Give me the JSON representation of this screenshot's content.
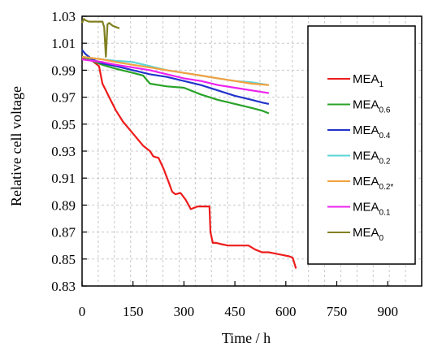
{
  "chart_data": {
    "type": "line",
    "title": "",
    "xlabel": "Time / h",
    "ylabel": "Relative cell voltage",
    "xlim": [
      0,
      1000
    ],
    "ylim": [
      0.83,
      1.03
    ],
    "xticks": [
      "0",
      "150",
      "300",
      "450",
      "600",
      "750",
      "900"
    ],
    "yticks": [
      "0.83",
      "0.85",
      "0.87",
      "0.89",
      "0.91",
      "0.93",
      "0.95",
      "0.97",
      "0.99",
      "1.01",
      "1.03"
    ],
    "grid": true,
    "legend_position": "right",
    "series": [
      {
        "name": "MEA",
        "sub": "1",
        "color": "#ee1c1c",
        "x": [
          0,
          10,
          30,
          50,
          60,
          70,
          80,
          90,
          100,
          120,
          140,
          160,
          180,
          200,
          210,
          225,
          240,
          255,
          265,
          275,
          290,
          305,
          320,
          340,
          360,
          375,
          378,
          385,
          395,
          410,
          430,
          450,
          470,
          490,
          510,
          530,
          550,
          570,
          590,
          610,
          620,
          630
        ],
        "y": [
          0.999,
          0.998,
          0.997,
          0.993,
          0.98,
          0.975,
          0.97,
          0.965,
          0.96,
          0.952,
          0.946,
          0.94,
          0.934,
          0.93,
          0.926,
          0.925,
          0.917,
          0.907,
          0.9,
          0.898,
          0.899,
          0.894,
          0.887,
          0.889,
          0.889,
          0.889,
          0.87,
          0.862,
          0.862,
          0.861,
          0.86,
          0.86,
          0.86,
          0.86,
          0.857,
          0.855,
          0.855,
          0.854,
          0.853,
          0.852,
          0.851,
          0.843
        ]
      },
      {
        "name": "MEA",
        "sub": "0.6",
        "color": "#29a329",
        "x": [
          0,
          20,
          60,
          100,
          150,
          180,
          200,
          250,
          300,
          350,
          400,
          450,
          500,
          530,
          550
        ],
        "y": [
          1.0,
          0.998,
          0.994,
          0.991,
          0.988,
          0.986,
          0.98,
          0.978,
          0.977,
          0.972,
          0.968,
          0.965,
          0.962,
          0.96,
          0.958
        ]
      },
      {
        "name": "MEA",
        "sub": "0.4",
        "color": "#2233cc",
        "x": [
          0,
          10,
          30,
          60,
          100,
          150,
          200,
          250,
          300,
          350,
          400,
          450,
          500,
          530,
          550
        ],
        "y": [
          1.005,
          1.002,
          0.998,
          0.995,
          0.993,
          0.99,
          0.987,
          0.985,
          0.982,
          0.979,
          0.975,
          0.971,
          0.968,
          0.966,
          0.965
        ]
      },
      {
        "name": "MEA",
        "sub": "0.2",
        "color": "#5cd6d6",
        "x": [
          0,
          30,
          60,
          100,
          150,
          200,
          250,
          300,
          350,
          400,
          450,
          500,
          550
        ],
        "y": [
          1.0,
          0.999,
          0.998,
          0.997,
          0.996,
          0.993,
          0.99,
          0.988,
          0.986,
          0.984,
          0.982,
          0.981,
          0.979
        ]
      },
      {
        "name": "MEA",
        "sub": "0.2*",
        "color": "#f4a040",
        "x": [
          0,
          30,
          60,
          100,
          150,
          200,
          250,
          300,
          350,
          400,
          450,
          500,
          550
        ],
        "y": [
          1.0,
          0.999,
          0.998,
          0.996,
          0.994,
          0.992,
          0.99,
          0.988,
          0.986,
          0.984,
          0.982,
          0.98,
          0.979
        ]
      },
      {
        "name": "MEA",
        "sub": "0.1",
        "color": "#ee22ee",
        "x": [
          0,
          30,
          60,
          100,
          150,
          200,
          250,
          300,
          350,
          400,
          450,
          500,
          550
        ],
        "y": [
          0.998,
          0.997,
          0.996,
          0.994,
          0.992,
          0.99,
          0.987,
          0.984,
          0.982,
          0.979,
          0.977,
          0.975,
          0.973
        ]
      },
      {
        "name": "MEA",
        "sub": "0",
        "color": "#808020",
        "x": [
          0,
          5,
          10,
          20,
          40,
          60,
          65,
          70,
          75,
          80,
          90,
          100,
          110
        ],
        "y": [
          1.025,
          1.028,
          1.027,
          1.026,
          1.026,
          1.026,
          1.022,
          1.0,
          1.024,
          1.025,
          1.023,
          1.022,
          1.021
        ]
      }
    ]
  }
}
